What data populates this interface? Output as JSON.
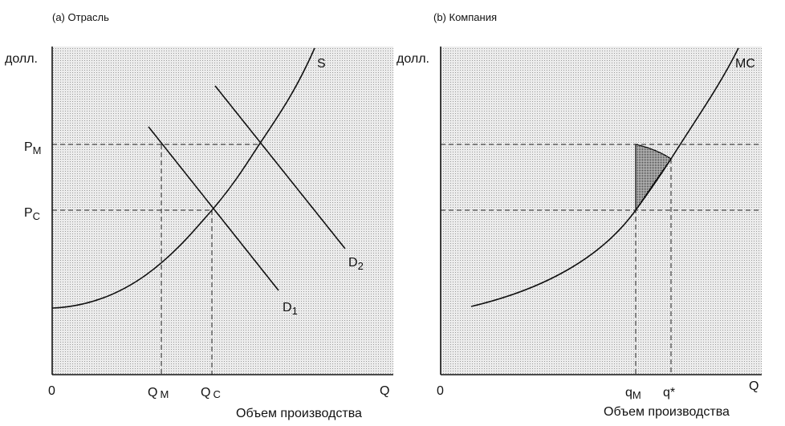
{
  "panels": [
    {
      "title": "(a) Отрасль",
      "y_axis_label": "долл.",
      "origin": "0",
      "x_axis_end": "Q",
      "x_axis_label": "Объем производства",
      "curves": {
        "supply": "S",
        "demand_1": {
          "main": "D",
          "sub": "1"
        },
        "demand_2": {
          "main": "D",
          "sub": "2"
        }
      },
      "price_labels": [
        {
          "main": "P",
          "sub": "M"
        },
        {
          "main": "P",
          "sub": "C"
        }
      ],
      "quantity_labels": [
        {
          "main": "Q",
          "sub": "M"
        },
        {
          "main": "Q",
          "sub": "C"
        }
      ]
    },
    {
      "title": "(b) Компания",
      "y_axis_label": "долл.",
      "origin": "0",
      "x_axis_end": "Q",
      "x_axis_label": "Объем производства",
      "curves": {
        "marginal_cost": "MC"
      },
      "quantity_labels": [
        {
          "main": "q",
          "sub": "M"
        },
        "q*"
      ]
    }
  ]
}
